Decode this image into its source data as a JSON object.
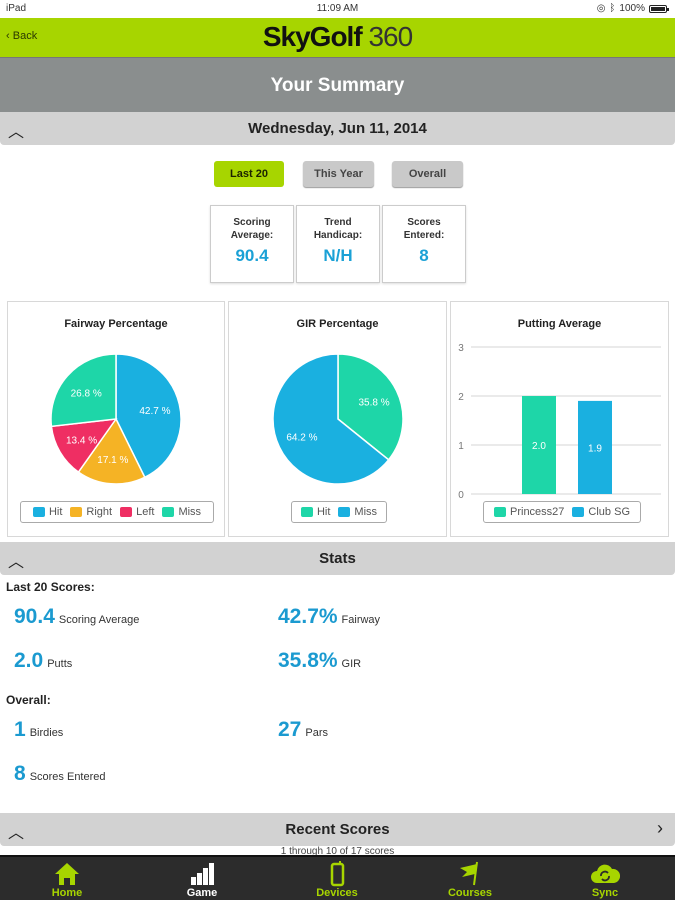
{
  "status_bar": {
    "device": "iPad",
    "time": "11:09 AM",
    "battery": "100%"
  },
  "app_bar": {
    "back_label": "Back",
    "logo_bold": "SkyGolf",
    "logo_thin": "360"
  },
  "page_title": "Your Summary",
  "date_header": "Wednesday, Jun 11, 2014",
  "filters": [
    {
      "label": "Last 20",
      "active": true
    },
    {
      "label": "This Year",
      "active": false
    },
    {
      "label": "Overall",
      "active": false
    }
  ],
  "tiles": [
    {
      "label_line1": "Scoring",
      "label_line2": "Average:",
      "value": "90.4"
    },
    {
      "label_line1": "Trend",
      "label_line2": "Handicap:",
      "value": "N/H"
    },
    {
      "label_line1": "Scores",
      "label_line2": "Entered:",
      "value": "8"
    }
  ],
  "colors": {
    "brand_green": "#a7d500",
    "value_blue": "#1b9ad0",
    "hit_blue": "#1ab0e0",
    "right_orange": "#f5b325",
    "left_pink": "#ef2e63",
    "miss_teal": "#1ed6a8"
  },
  "chart_data": [
    {
      "type": "pie",
      "title": "Fairway Percentage",
      "categories": [
        "Hit",
        "Right",
        "Left",
        "Miss"
      ],
      "values": [
        42.7,
        17.1,
        13.4,
        26.8
      ],
      "labels": [
        "42.7 %",
        "17.1 %",
        "13.4 %",
        "26.8 %"
      ],
      "colors": [
        "#1ab0e0",
        "#f5b325",
        "#ef2e63",
        "#1ed6a8"
      ],
      "legend": "bottom"
    },
    {
      "type": "pie",
      "title": "GIR Percentage",
      "categories": [
        "Hit",
        "Miss"
      ],
      "values": [
        35.8,
        64.2
      ],
      "labels": [
        "35.8 %",
        "64.2 %"
      ],
      "colors": [
        "#1ed6a8",
        "#1ab0e0"
      ],
      "legend": "bottom"
    },
    {
      "type": "bar",
      "title": "Putting Average",
      "categories": [
        "Princess27",
        "Club SG"
      ],
      "values": [
        2.0,
        1.9
      ],
      "labels": [
        "2.0",
        "1.9"
      ],
      "colors": [
        "#1ed6a8",
        "#1ab0e0"
      ],
      "ylim": [
        0,
        3
      ],
      "yticks": [
        "0",
        "1",
        "2",
        "3"
      ],
      "grid": true,
      "legend": "bottom"
    }
  ],
  "stats": {
    "header": "Stats",
    "last20_label": "Last 20 Scores:",
    "last20": [
      {
        "value": "90.4",
        "label": "Scoring Average"
      },
      {
        "value": "42.7%",
        "label": "Fairway"
      },
      {
        "value": "2.0",
        "label": "Putts"
      },
      {
        "value": "35.8%",
        "label": "GIR"
      }
    ],
    "overall_label": "Overall:",
    "overall": [
      {
        "value": "1",
        "label": "Birdies"
      },
      {
        "value": "27",
        "label": "Pars"
      },
      {
        "value": "8",
        "label": "Scores Entered"
      }
    ]
  },
  "recent_scores": {
    "header": "Recent Scores",
    "subtitle": "1 through 10 of 17 scores"
  },
  "tab_bar": [
    {
      "label": "Home",
      "icon": "home-icon"
    },
    {
      "label": "Game",
      "icon": "bar-chart-icon",
      "selected": true
    },
    {
      "label": "Devices",
      "icon": "device-icon"
    },
    {
      "label": "Courses",
      "icon": "flag-icon"
    },
    {
      "label": "Sync",
      "icon": "cloud-sync-icon"
    }
  ]
}
